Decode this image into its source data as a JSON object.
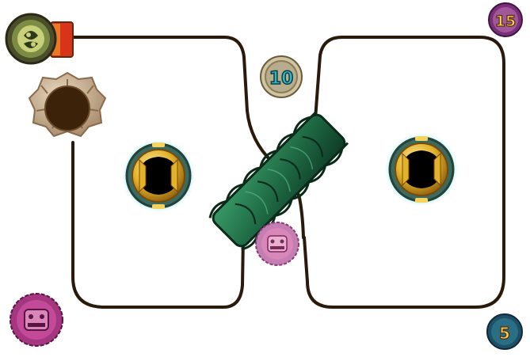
{
  "board": {
    "track_color": "#2a1a0c",
    "background": "#ffffff"
  },
  "coins": {
    "top_center": {
      "label": "10",
      "ring": "#b7ad8c",
      "text_color": "#2fb7c4"
    },
    "top_right": {
      "label": "15",
      "ring": "#a0589a",
      "text_color": "#f3d25a"
    },
    "bottom_right": {
      "label": "5",
      "ring": "#2a6e86",
      "text_color": "#f3d25a"
    }
  },
  "icons": {
    "launcher": "spiral-totem-icon",
    "hole": "stone-flower-hole-icon",
    "portal_left": "golden-portal-icon",
    "portal_right": "golden-portal-icon",
    "bridge": "jade-bridge-icon",
    "small_mask": "purple-mask-token-icon",
    "large_mask": "purple-mask-token-icon"
  },
  "colors": {
    "jade": "#1f6b45",
    "jade_dark": "#0f3a25",
    "gold": "#d8a51e",
    "gold_light": "#f4d35e",
    "portal_glow": "#7fe3f2",
    "mask_purple": "#a4377f",
    "mask_pink": "#d986b8",
    "launcher_bar": "#d8341a"
  }
}
